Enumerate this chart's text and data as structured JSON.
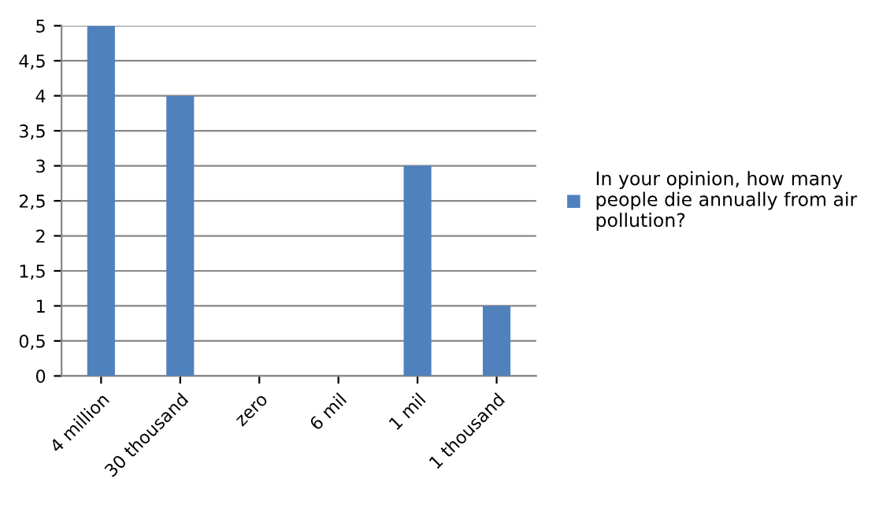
{
  "chart_data": {
    "type": "bar",
    "categories": [
      "4 million",
      "30 thousand",
      "zero",
      "6 mil",
      "1 mil",
      "1 thousand"
    ],
    "series": [
      {
        "name": "In your opinion, how many\npeople die annually from air\npollution?",
        "color": "#4f81bd",
        "values": [
          5,
          4,
          0,
          0,
          3,
          1
        ]
      }
    ],
    "ylim": [
      0,
      5
    ],
    "yticks": [
      0,
      {
        "value": 0.5,
        "label": "0,5"
      },
      1,
      {
        "value": 1.5,
        "label": "1,5"
      },
      2,
      {
        "value": 2.5,
        "label": "2,5"
      },
      3,
      {
        "value": 3.5,
        "label": "3,5"
      },
      4,
      {
        "value": 4.5,
        "label": "4,5"
      },
      5
    ],
    "grid": "y",
    "legend": "right"
  }
}
